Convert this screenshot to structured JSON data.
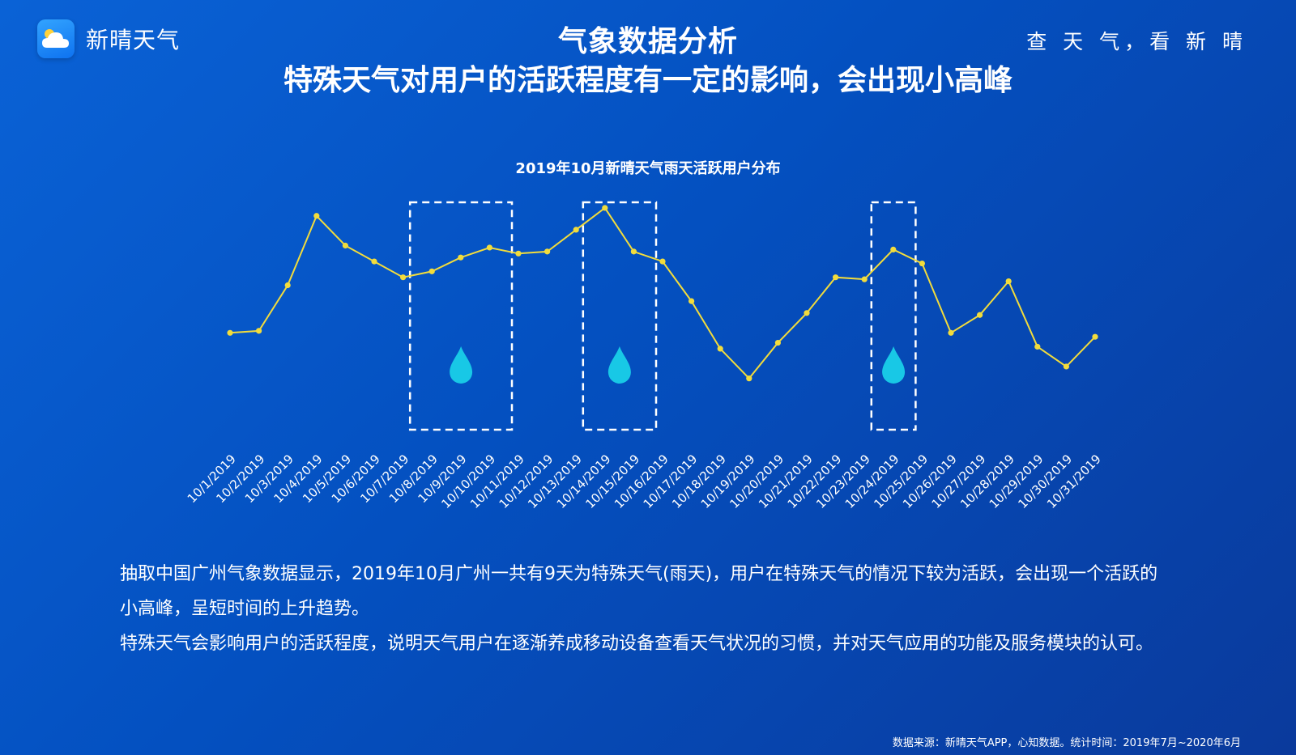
{
  "header": {
    "brand": "新晴天气",
    "title": "气象数据分析",
    "subtitle": "特殊天气对用户的活跃程度有一定的影响，会出现小高峰",
    "slogan": "查 天 气，看 新 晴"
  },
  "chart_data": {
    "type": "line",
    "title": "2019年10月新晴天气雨天活跃用户分布",
    "categories": [
      "10/1/2019",
      "10/2/2019",
      "10/3/2019",
      "10/4/2019",
      "10/5/2019",
      "10/6/2019",
      "10/7/2019",
      "10/8/2019",
      "10/9/2019",
      "10/10/2019",
      "10/11/2019",
      "10/12/2019",
      "10/13/2019",
      "10/14/2019",
      "10/15/2019",
      "10/16/2019",
      "10/17/2019",
      "10/18/2019",
      "10/19/2019",
      "10/20/2019",
      "10/21/2019",
      "10/22/2019",
      "10/23/2019",
      "10/24/2019",
      "10/25/2019",
      "10/26/2019",
      "10/27/2019",
      "10/28/2019",
      "10/29/2019",
      "10/30/2019",
      "10/31/2019"
    ],
    "series": [
      {
        "values": [
          26,
          27,
          50,
          85,
          70,
          62,
          54,
          57,
          64,
          69,
          66,
          67,
          78,
          89,
          67,
          62,
          42,
          18,
          3,
          21,
          36,
          54,
          53,
          68,
          61,
          26,
          35,
          52,
          19,
          9,
          24
        ]
      }
    ],
    "ylim": [
      0,
      100
    ],
    "grid": false,
    "legend": "none",
    "highlight_ranges": [
      [
        7,
        10
      ],
      [
        13,
        15
      ],
      [
        23,
        24
      ]
    ],
    "highlight_icon": "raindrop-icon",
    "line_color": "#f2dc3c",
    "highlight_color": "#ffffff",
    "drop_color": "#18c8e6"
  },
  "description": {
    "paragraph1": "抽取中国广州气象数据显示，2019年10月广州一共有9天为特殊天气(雨天)，用户在特殊天气的情况下较为活跃，会出现一个活跃的小高峰，呈短时间的上升趋势。",
    "paragraph2": "特殊天气会影响用户的活跃程度，说明天气用户在逐渐养成移动设备查看天气状况的习惯，并对天气应用的功能及服务模块的认可。"
  },
  "footer": {
    "source": "数据来源：新晴天气APP，心知数据。统计时间：2019年7月~2020年6月"
  }
}
